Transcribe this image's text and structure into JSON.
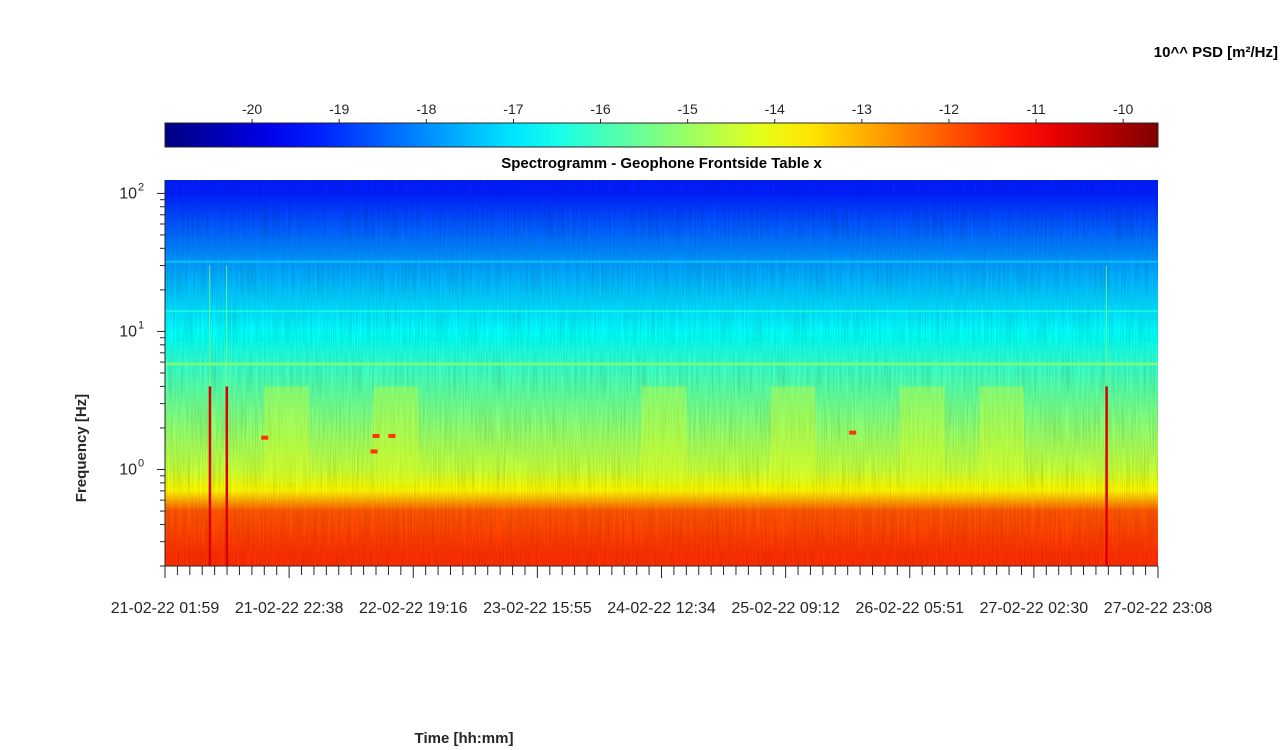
{
  "chart_data": {
    "type": "heatmap",
    "title": "Spectrogramm - Geophone Frontside Table x",
    "xlabel": "Time [hh:mm]",
    "ylabel": "Frequency [Hz]",
    "colorbar_label": "10^^ PSD [m²/Hz]",
    "colormap": "jet",
    "color_range": [
      -21,
      -9.6
    ],
    "colorbar_ticks": [
      "-20",
      "-19",
      "-18",
      "-17",
      "-16",
      "-15",
      "-14",
      "-13",
      "-12",
      "-11",
      "-10"
    ],
    "y_scale": "log",
    "ylim": [
      0.2,
      125
    ],
    "y_ticks": [
      {
        "value": 1,
        "label": "10",
        "exp": "0"
      },
      {
        "value": 10,
        "label": "10",
        "exp": "1"
      },
      {
        "value": 100,
        "label": "10",
        "exp": "2"
      }
    ],
    "x_ticks": [
      "21-02-22 01:59",
      "21-02-22 22:38",
      "22-02-22 19:16",
      "23-02-22 15:55",
      "24-02-22 12:34",
      "25-02-22 09:12",
      "26-02-22 05:51",
      "27-02-22 02:30",
      "27-02-22 23:08"
    ],
    "psd_profile": [
      {
        "frequency": 0.25,
        "log_psd": -11.6
      },
      {
        "frequency": 0.5,
        "log_psd": -12.0
      },
      {
        "frequency": 0.7,
        "log_psd": -13.8
      },
      {
        "frequency": 1,
        "log_psd": -14.5
      },
      {
        "frequency": 3,
        "log_psd": -15.5
      },
      {
        "frequency": 10,
        "log_psd": -16.7
      },
      {
        "frequency": 30,
        "log_psd": -17.8
      },
      {
        "frequency": 100,
        "log_psd": -19.2
      }
    ],
    "events": [
      {
        "time_index": 0.045,
        "note": "broadband spike"
      },
      {
        "time_index": 0.062,
        "note": "broadband spike"
      },
      {
        "time_index": 0.948,
        "note": "broadband spike"
      }
    ]
  }
}
